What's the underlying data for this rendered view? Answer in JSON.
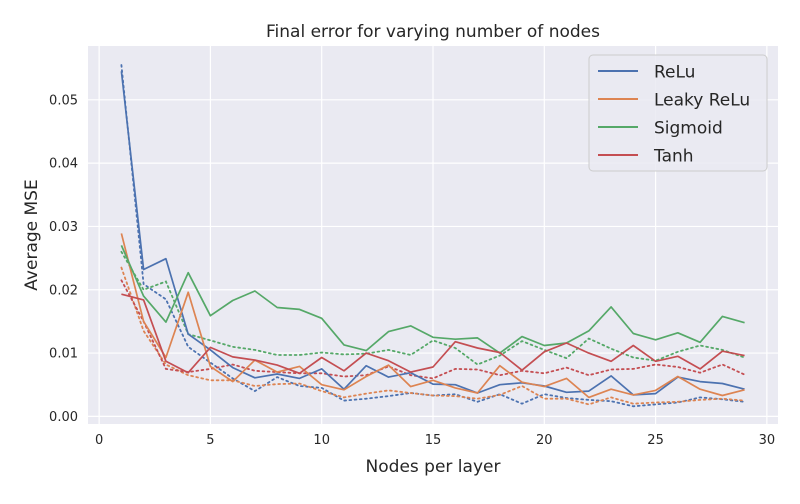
{
  "chart_data": {
    "type": "line",
    "title": "Final error for varying number of nodes",
    "xlabel": "Nodes per layer",
    "ylabel": "Average MSE",
    "xlim": [
      -0.5,
      30.5
    ],
    "ylim": [
      -0.0012,
      0.0585
    ],
    "x_ticks": [
      0,
      5,
      10,
      15,
      20,
      25,
      30
    ],
    "y_ticks": [
      0.0,
      0.01,
      0.02,
      0.03,
      0.04,
      0.05
    ],
    "y_tick_labels": [
      "0.00",
      "0.01",
      "0.02",
      "0.03",
      "0.04",
      "0.05"
    ],
    "grid": true,
    "legend_position": "top-right",
    "x": [
      1,
      2,
      3,
      4,
      5,
      6,
      7,
      8,
      9,
      10,
      11,
      12,
      13,
      14,
      15,
      16,
      17,
      18,
      19,
      20,
      21,
      22,
      23,
      24,
      25,
      26,
      27,
      28,
      29
    ],
    "series": [
      {
        "name": "ReLu",
        "color": "#4c72b0",
        "values": [
          0.0545,
          0.0232,
          0.0249,
          0.013,
          0.0105,
          0.0077,
          0.0061,
          0.0067,
          0.006,
          0.0075,
          0.0043,
          0.008,
          0.0062,
          0.0069,
          0.0051,
          0.005,
          0.0037,
          0.005,
          0.0053,
          0.0048,
          0.0038,
          0.004,
          0.0064,
          0.0034,
          0.0036,
          0.0062,
          0.0055,
          0.0052,
          0.0043
        ],
        "dotted_values": [
          0.0555,
          0.0209,
          0.0185,
          0.011,
          0.0085,
          0.006,
          0.004,
          0.0062,
          0.0048,
          0.0045,
          0.0025,
          0.0028,
          0.0032,
          0.0037,
          0.0033,
          0.0035,
          0.0023,
          0.0035,
          0.002,
          0.0035,
          0.0029,
          0.0026,
          0.0024,
          0.0016,
          0.0019,
          0.0022,
          0.003,
          0.0027,
          0.0023
        ]
      },
      {
        "name": "Leaky ReLu",
        "color": "#dd8452",
        "values": [
          0.0289,
          0.015,
          0.0093,
          0.0196,
          0.0079,
          0.0055,
          0.0089,
          0.007,
          0.0079,
          0.005,
          0.0042,
          0.0063,
          0.0081,
          0.0047,
          0.0057,
          0.0045,
          0.0037,
          0.008,
          0.0054,
          0.0047,
          0.006,
          0.003,
          0.0043,
          0.0034,
          0.0041,
          0.0063,
          0.0043,
          0.0033,
          0.0042
        ],
        "dotted_values": [
          0.0235,
          0.0135,
          0.0082,
          0.0065,
          0.0057,
          0.0057,
          0.0048,
          0.0051,
          0.0052,
          0.004,
          0.003,
          0.0036,
          0.0041,
          0.0037,
          0.0033,
          0.0032,
          0.0028,
          0.0034,
          0.0048,
          0.0028,
          0.0028,
          0.0019,
          0.003,
          0.002,
          0.0022,
          0.0023,
          0.0026,
          0.0028,
          0.0025
        ]
      },
      {
        "name": "Sigmoid",
        "color": "#55a868",
        "values": [
          0.027,
          0.019,
          0.0149,
          0.0227,
          0.0159,
          0.0183,
          0.0198,
          0.0172,
          0.0169,
          0.0155,
          0.0113,
          0.0104,
          0.0134,
          0.0143,
          0.0125,
          0.0122,
          0.0124,
          0.01,
          0.0126,
          0.0112,
          0.0116,
          0.0135,
          0.0173,
          0.0131,
          0.0121,
          0.0132,
          0.0117,
          0.0158,
          0.0148
        ],
        "dotted_values": [
          0.026,
          0.02,
          0.0213,
          0.013,
          0.012,
          0.011,
          0.0105,
          0.0097,
          0.0097,
          0.0101,
          0.0098,
          0.0099,
          0.0105,
          0.0097,
          0.012,
          0.0108,
          0.0082,
          0.0096,
          0.0119,
          0.0105,
          0.0092,
          0.0123,
          0.0107,
          0.0093,
          0.0088,
          0.0102,
          0.0112,
          0.0105,
          0.0093
        ]
      },
      {
        "name": "Tanh",
        "color": "#c44e52",
        "values": [
          0.0193,
          0.0184,
          0.0087,
          0.0069,
          0.0109,
          0.0094,
          0.0089,
          0.0081,
          0.0068,
          0.0093,
          0.0072,
          0.01,
          0.0088,
          0.007,
          0.0078,
          0.0118,
          0.0108,
          0.0101,
          0.0073,
          0.0102,
          0.0116,
          0.01,
          0.0087,
          0.0112,
          0.0087,
          0.0095,
          0.0075,
          0.0103,
          0.0096
        ],
        "dotted_values": [
          0.0215,
          0.015,
          0.0075,
          0.007,
          0.0075,
          0.0082,
          0.0072,
          0.007,
          0.0068,
          0.0068,
          0.0063,
          0.0065,
          0.0079,
          0.0065,
          0.006,
          0.0075,
          0.0074,
          0.0065,
          0.0072,
          0.0068,
          0.0077,
          0.0065,
          0.0074,
          0.0075,
          0.0082,
          0.0078,
          0.0069,
          0.0082,
          0.0066
        ]
      }
    ]
  }
}
